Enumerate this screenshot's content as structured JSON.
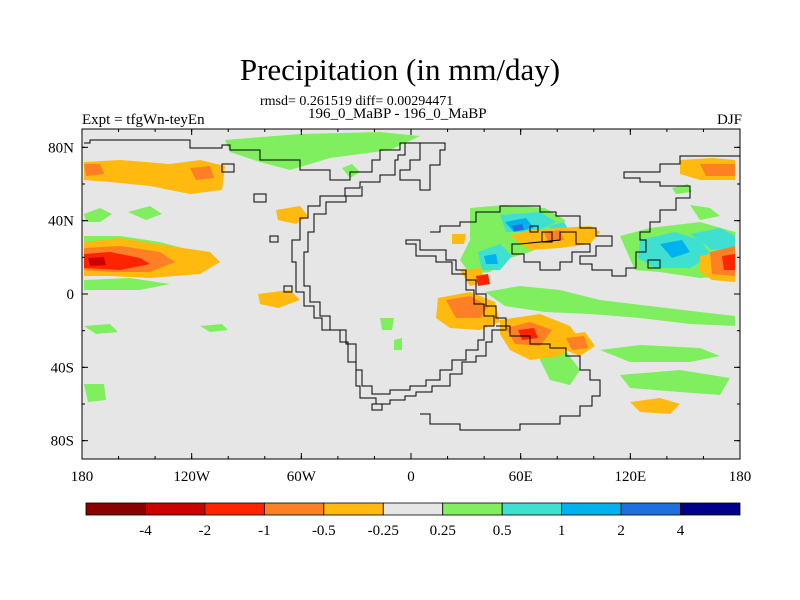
{
  "title": "Precipitation (in mm/day)",
  "stats": {
    "rmsd_label": "rmsd=",
    "rmsd": "0.261519",
    "diff_label": "diff=",
    "diff": "0.00294471"
  },
  "case_label": "196_0_MaBP - 196_0_MaBP",
  "expt_label": "Expt = tfgWn-teyEn",
  "season": "DJF",
  "map": {
    "background": "#e6e6e6",
    "lon_ticks": [
      "180",
      "120W",
      "60W",
      "0",
      "60E",
      "120E",
      "180"
    ],
    "lat_ticks": [
      "80N",
      "40N",
      "0",
      "40S",
      "80S"
    ],
    "lon_range": [
      -180,
      180
    ],
    "lat_range": [
      -90,
      90
    ]
  },
  "colorbar": {
    "colors": [
      "#8b0000",
      "#cd0000",
      "#ff2400",
      "#ff7f24",
      "#ffb90f",
      "#e6e6e6",
      "#7fef5f",
      "#40e0d0",
      "#00b2ee",
      "#1e6fe0",
      "#00008b"
    ],
    "labels": [
      "-4",
      "-2",
      "-1",
      "-0.5",
      "-0.25",
      "0.25",
      "0.5",
      "1",
      "2",
      "4"
    ]
  }
}
